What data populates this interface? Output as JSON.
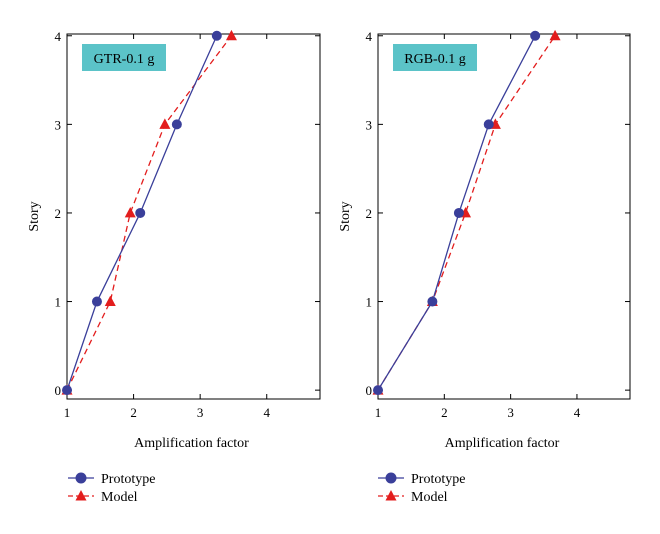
{
  "chart_data": [
    {
      "type": "line",
      "title": "GTR-0.1 g",
      "xlabel": "Amplification factor",
      "ylabel": "Story",
      "xlim": [
        1,
        4.8
      ],
      "ylim": [
        -0.1,
        4.02
      ],
      "xticks": [
        1,
        2,
        3,
        4
      ],
      "yticks": [
        0,
        1,
        2,
        3,
        4
      ],
      "title_box_color": "#5bc3c8",
      "series": [
        {
          "name": "Prototype",
          "color": "#3a3f9a",
          "marker": "circle",
          "dash": "solid",
          "x": [
            1.0,
            1.45,
            2.1,
            2.65,
            3.25
          ],
          "y": [
            0,
            1,
            2,
            3,
            4
          ]
        },
        {
          "name": "Model",
          "color": "#e31d1d",
          "marker": "triangle",
          "dash": "dashed",
          "x": [
            1.0,
            1.65,
            1.95,
            2.47,
            3.47
          ],
          "y": [
            0,
            1,
            2,
            3,
            4
          ]
        }
      ]
    },
    {
      "type": "line",
      "title": "RGB-0.1 g",
      "xlabel": "Amplification factor",
      "ylabel": "Story",
      "xlim": [
        1,
        4.8
      ],
      "ylim": [
        -0.1,
        4.02
      ],
      "xticks": [
        1,
        2,
        3,
        4
      ],
      "yticks": [
        0,
        1,
        2,
        3,
        4
      ],
      "title_box_color": "#5bc3c8",
      "series": [
        {
          "name": "Prototype",
          "color": "#3a3f9a",
          "marker": "circle",
          "dash": "solid",
          "x": [
            1.0,
            1.82,
            2.22,
            2.67,
            3.37
          ],
          "y": [
            0,
            1,
            2,
            3,
            4
          ]
        },
        {
          "name": "Model",
          "color": "#e31d1d",
          "marker": "triangle",
          "dash": "dashed",
          "x": [
            1.0,
            1.82,
            2.32,
            2.77,
            3.67
          ],
          "y": [
            0,
            1,
            2,
            3,
            4
          ]
        }
      ]
    }
  ]
}
